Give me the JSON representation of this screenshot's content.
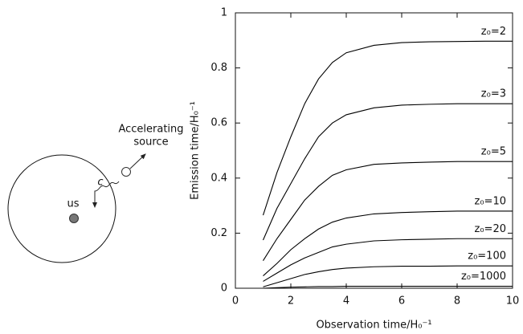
{
  "diagram": {
    "observer_label": "us",
    "light_label": "c",
    "source_label": [
      "Accelerating",
      "source"
    ]
  },
  "chart_data": {
    "type": "line",
    "x_label": "Observation time/H₀⁻¹",
    "y_label": "Emission time/H₀⁻¹",
    "x": [
      1,
      1.5,
      2,
      2.5,
      3,
      3.5,
      4,
      5,
      6,
      7,
      8,
      9,
      10
    ],
    "series": [
      {
        "name": "z₀=2",
        "color": "#000000",
        "values": [
          0.265,
          0.42,
          0.55,
          0.67,
          0.76,
          0.82,
          0.855,
          0.882,
          0.892,
          0.895,
          0.896,
          0.897,
          0.897
        ]
      },
      {
        "name": "z₀=3",
        "color": "#000000",
        "values": [
          0.175,
          0.29,
          0.38,
          0.47,
          0.55,
          0.6,
          0.63,
          0.655,
          0.665,
          0.668,
          0.67,
          0.67,
          0.67
        ]
      },
      {
        "name": "z₀=5",
        "color": "#000000",
        "values": [
          0.1,
          0.18,
          0.25,
          0.32,
          0.37,
          0.41,
          0.43,
          0.45,
          0.455,
          0.458,
          0.46,
          0.46,
          0.46
        ]
      },
      {
        "name": "z₀=10",
        "color": "#000000",
        "values": [
          0.045,
          0.09,
          0.14,
          0.18,
          0.215,
          0.24,
          0.255,
          0.27,
          0.275,
          0.278,
          0.28,
          0.28,
          0.28
        ]
      },
      {
        "name": "z₀=20",
        "color": "#000000",
        "values": [
          0.025,
          0.055,
          0.085,
          0.11,
          0.13,
          0.15,
          0.16,
          0.172,
          0.176,
          0.178,
          0.18,
          0.18,
          0.18
        ]
      },
      {
        "name": "z₀=100",
        "color": "#000000",
        "values": [
          0.005,
          0.02,
          0.035,
          0.05,
          0.06,
          0.068,
          0.073,
          0.078,
          0.08,
          0.08,
          0.081,
          0.081,
          0.081
        ]
      },
      {
        "name": "z₀=1000",
        "color": "#000000",
        "values": [
          0,
          0.002,
          0.004,
          0.005,
          0.006,
          0.006,
          0.007,
          0.007,
          0.007,
          0.007,
          0.007,
          0.007,
          0.007
        ]
      }
    ],
    "xlim": [
      0,
      10
    ],
    "xticks": [
      0,
      2,
      4,
      6,
      8,
      10
    ],
    "ylim": [
      0,
      1
    ],
    "yticks": [
      0,
      0.2,
      0.4,
      0.6,
      0.8,
      1
    ]
  }
}
